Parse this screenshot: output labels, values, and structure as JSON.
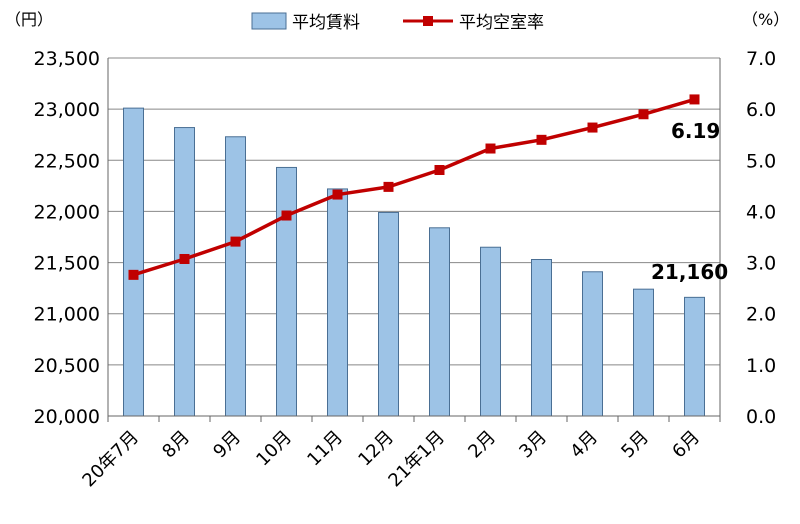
{
  "chart_data": {
    "type": "bar+line",
    "categories": [
      "20年7月",
      "8月",
      "9月",
      "10月",
      "11月",
      "12月",
      "21年1月",
      "2月",
      "3月",
      "4月",
      "5月",
      "6月"
    ],
    "series": [
      {
        "name": "平均賃料",
        "type": "bar",
        "axis": "left",
        "color": "#9dc3e6",
        "values": [
          23010,
          22820,
          22730,
          22430,
          22220,
          21990,
          21840,
          21650,
          21530,
          21410,
          21240,
          21160
        ]
      },
      {
        "name": "平均空室率",
        "type": "line",
        "axis": "right",
        "color": "#c00000",
        "values": [
          2.76,
          3.07,
          3.41,
          3.92,
          4.33,
          4.48,
          4.81,
          5.23,
          5.4,
          5.64,
          5.9,
          6.19
        ]
      }
    ],
    "y_left": {
      "unit": "（円）",
      "range": [
        20000,
        23500
      ],
      "ticks": [
        "20,000",
        "20,500",
        "21,000",
        "21,500",
        "22,000",
        "22,500",
        "23,000",
        "23,500"
      ],
      "tick_values": [
        20000,
        20500,
        21000,
        21500,
        22000,
        22500,
        23000,
        23500
      ]
    },
    "y_right": {
      "unit": "（%）",
      "range": [
        0,
        7
      ],
      "ticks": [
        "0.0",
        "1.0",
        "2.0",
        "3.0",
        "4.0",
        "5.0",
        "6.0",
        "7.0"
      ],
      "tick_values": [
        0,
        1,
        2,
        3,
        4,
        5,
        6,
        7
      ]
    },
    "annotations": {
      "last_rent": "21,160",
      "last_vacancy": "6.19"
    },
    "legend": {
      "placement": "top",
      "items": [
        "平均賃料",
        "平均空室率"
      ]
    },
    "grid": true
  }
}
